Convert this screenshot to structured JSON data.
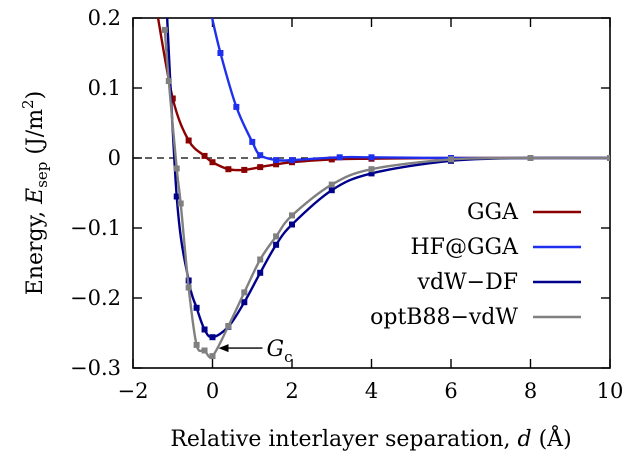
{
  "chart_data": {
    "type": "line",
    "xlabel_text": "Relative interlayer separation, ",
    "xlabel_var": "d",
    "xlabel_unit": " (Å)",
    "ylabel_text": "Energy, ",
    "ylabel_var": "E",
    "ylabel_sub": "sep",
    "ylabel_unit": " (J/m",
    "ylabel_sup": "2",
    "ylabel_close": ")",
    "xlim": [
      -2,
      10
    ],
    "ylim": [
      -0.3,
      0.2
    ],
    "x_ticks": [
      -2,
      0,
      2,
      4,
      6,
      8,
      10
    ],
    "x_tick_labels": [
      "−2",
      "0",
      "2",
      "4",
      "6",
      "8",
      "10"
    ],
    "y_ticks": [
      -0.3,
      -0.2,
      -0.1,
      0,
      0.1,
      0.2
    ],
    "y_tick_labels": [
      "−0.3",
      "−0.2",
      "−0.1",
      "0",
      "0.1",
      "0.2"
    ],
    "zero_line": true,
    "grid": false,
    "legend_position": "right",
    "annotation": {
      "text": "G",
      "sub": "c",
      "x": 0,
      "y": -0.283
    },
    "series": [
      {
        "name": "GGA",
        "color": "#8b0000",
        "points": [
          [
            -1.4,
            0.21
          ],
          [
            -1.0,
            0.085
          ],
          [
            -0.6,
            0.025
          ],
          [
            -0.2,
            0.003
          ],
          [
            0,
            -0.006
          ],
          [
            0.4,
            -0.016
          ],
          [
            0.8,
            -0.017
          ],
          [
            1.2,
            -0.013
          ],
          [
            1.6,
            -0.009
          ],
          [
            2.0,
            -0.006
          ],
          [
            3.0,
            -0.002
          ],
          [
            4.0,
            -0.001
          ],
          [
            6.0,
            0
          ],
          [
            8.0,
            0
          ],
          [
            10.0,
            0
          ]
        ]
      },
      {
        "name": "HF@GGA",
        "color": "#1f2fee",
        "points": [
          [
            -0.05,
            0.21
          ],
          [
            0.2,
            0.15
          ],
          [
            0.6,
            0.073
          ],
          [
            1.0,
            0.023
          ],
          [
            1.2,
            0.004
          ],
          [
            1.6,
            -0.003
          ],
          [
            2.0,
            -0.003
          ],
          [
            3.2,
            0.001
          ],
          [
            4.0,
            0.001
          ],
          [
            6.0,
            0
          ],
          [
            8.0,
            0
          ],
          [
            10.0,
            0
          ]
        ]
      },
      {
        "name": "vdW−DF",
        "color": "#00008b",
        "points": [
          [
            -1.2,
            0.27
          ],
          [
            -0.9,
            -0.055
          ],
          [
            -0.6,
            -0.175
          ],
          [
            -0.4,
            -0.214
          ],
          [
            -0.2,
            -0.245
          ],
          [
            0,
            -0.256
          ],
          [
            0.4,
            -0.241
          ],
          [
            0.8,
            -0.206
          ],
          [
            1.2,
            -0.164
          ],
          [
            1.6,
            -0.124
          ],
          [
            2.0,
            -0.095
          ],
          [
            3.0,
            -0.046
          ],
          [
            4.0,
            -0.022
          ],
          [
            6.0,
            -0.004
          ],
          [
            8.0,
            0
          ],
          [
            10.0,
            0
          ]
        ]
      },
      {
        "name": "optB88−vdW",
        "color": "#808080",
        "points": [
          [
            -1.2,
            0.183
          ],
          [
            -1.1,
            0.11
          ],
          [
            -0.9,
            -0.015
          ],
          [
            -0.8,
            -0.065
          ],
          [
            -0.6,
            -0.185
          ],
          [
            -0.4,
            -0.267
          ],
          [
            -0.2,
            -0.275
          ],
          [
            0,
            -0.283
          ],
          [
            0.4,
            -0.24
          ],
          [
            0.8,
            -0.192
          ],
          [
            1.2,
            -0.145
          ],
          [
            1.6,
            -0.112
          ],
          [
            2.0,
            -0.082
          ],
          [
            3.0,
            -0.038
          ],
          [
            4.0,
            -0.016
          ],
          [
            6.0,
            -0.002
          ],
          [
            8.0,
            0
          ],
          [
            10.0,
            0
          ]
        ]
      }
    ]
  }
}
